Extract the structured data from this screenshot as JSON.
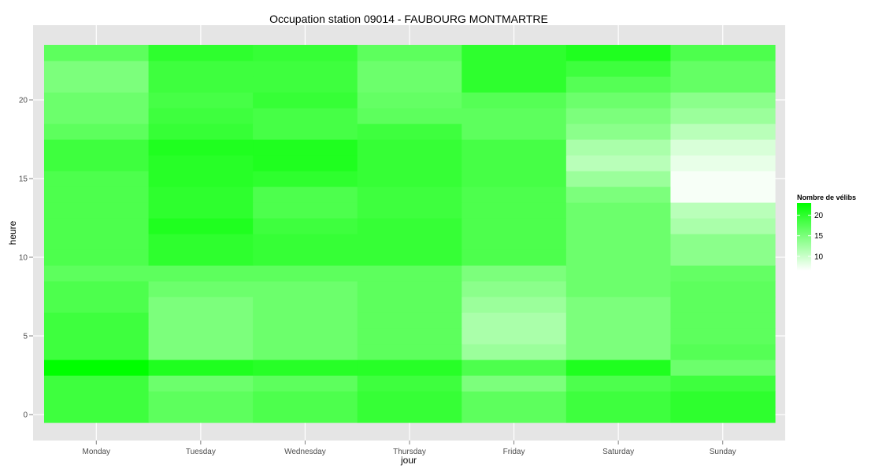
{
  "chart_data": {
    "type": "heatmap",
    "title": "Occupation station 09014 - FAUBOURG MONTMARTRE",
    "xlabel": "jour",
    "ylabel": "heure",
    "x_categories": [
      "Monday",
      "Tuesday",
      "Wednesday",
      "Thursday",
      "Friday",
      "Saturday",
      "Sunday"
    ],
    "y_ticks": [
      0,
      5,
      10,
      15,
      20
    ],
    "ylim": [
      -0.5,
      23.5
    ],
    "grid": true,
    "legend": {
      "title": "Nombre de vélibs",
      "position": "right",
      "ticks": [
        10,
        15,
        20
      ],
      "range": [
        6.5,
        23
      ],
      "low_color": "#ffffff",
      "high_color": "#00ff00"
    },
    "rows_by_hour": [
      [
        19,
        17,
        18,
        19.5,
        17,
        19,
        20
      ],
      [
        19,
        17,
        18,
        19.5,
        17,
        19,
        20
      ],
      [
        19,
        16,
        17,
        19,
        15,
        18,
        19
      ],
      [
        23,
        21,
        20.5,
        20.5,
        18,
        21,
        16
      ],
      [
        19,
        15,
        16,
        17,
        13,
        15,
        17.5
      ],
      [
        19,
        15,
        16,
        17,
        12,
        15,
        17
      ],
      [
        19,
        15,
        16,
        17,
        12,
        15,
        17
      ],
      [
        18,
        15,
        16,
        17,
        13,
        15,
        17
      ],
      [
        18,
        16,
        16,
        17,
        14,
        16,
        17
      ],
      [
        17,
        17,
        17,
        17,
        15,
        16,
        16.5
      ],
      [
        18,
        20,
        19.5,
        19.5,
        18,
        16,
        14
      ],
      [
        18,
        20,
        19.5,
        19.5,
        18,
        16,
        14
      ],
      [
        18,
        21,
        19,
        19.5,
        18,
        16,
        12
      ],
      [
        18,
        20,
        18,
        19,
        18,
        16,
        11
      ],
      [
        18,
        20,
        18,
        19,
        18,
        15,
        7
      ],
      [
        18,
        20.5,
        20,
        19.5,
        18.5,
        13,
        7
      ],
      [
        19,
        20.5,
        21,
        19.5,
        18.5,
        11,
        8
      ],
      [
        19,
        21,
        21,
        19.5,
        18.5,
        12,
        9
      ],
      [
        17,
        19.5,
        18.5,
        19,
        17,
        14,
        11
      ],
      [
        16,
        19,
        18.5,
        17,
        17,
        15,
        13
      ],
      [
        16,
        18.5,
        19.5,
        16.5,
        17.5,
        16,
        14
      ],
      [
        15,
        19,
        19,
        16,
        20,
        17.5,
        16.5
      ],
      [
        15,
        19,
        19,
        16,
        20,
        19,
        16.5
      ],
      [
        17,
        20,
        19.5,
        17,
        20,
        21,
        18
      ]
    ]
  }
}
